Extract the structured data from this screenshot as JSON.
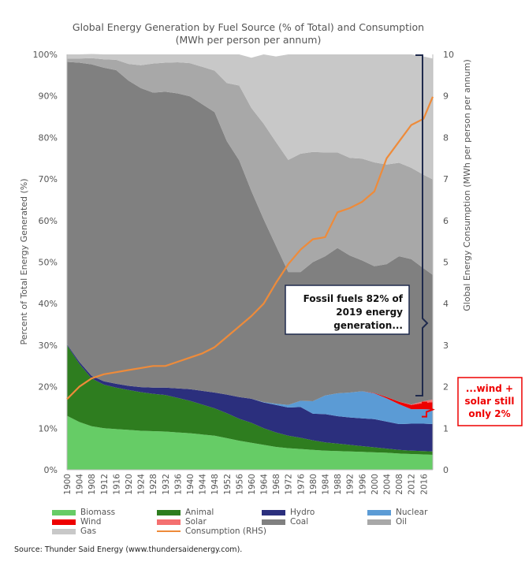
{
  "chart_data": {
    "type": "area",
    "title": "Global Energy Generation by Fuel Source (% of Total) and Consumption",
    "subtitle": "(MWh per person per annum)",
    "ylabel": "Percent of Total Energy Generated (%)",
    "y2label": "Global Energy Consumption (MWh per person per annum)",
    "ylim": [
      0,
      100
    ],
    "y2lim": [
      0,
      10
    ],
    "stacked": true,
    "grid": false,
    "legend_position": "bottom",
    "x": [
      1900,
      1904,
      1908,
      1912,
      1916,
      1920,
      1924,
      1928,
      1932,
      1936,
      1940,
      1944,
      1948,
      1952,
      1956,
      1960,
      1964,
      1968,
      1972,
      1976,
      1980,
      1984,
      1988,
      1992,
      1996,
      2000,
      2004,
      2008,
      2012,
      2016,
      2019
    ],
    "x_tick_labels": [
      "1900",
      "1904",
      "1908",
      "1912",
      "1916",
      "1920",
      "1924",
      "1928",
      "1932",
      "1936",
      "1940",
      "1944",
      "1948",
      "1952",
      "1956",
      "1960",
      "1964",
      "1968",
      "1972",
      "1976",
      "1980",
      "1984",
      "1988",
      "1992",
      "1996",
      "2000",
      "2004",
      "2008",
      "2012",
      "2016"
    ],
    "y_tick_labels": [
      "0%",
      "10%",
      "20%",
      "30%",
      "40%",
      "50%",
      "60%",
      "70%",
      "80%",
      "90%",
      "100%"
    ],
    "y2_tick_labels": [
      "0",
      "1",
      "2",
      "3",
      "4",
      "5",
      "6",
      "7",
      "8",
      "9",
      "10"
    ],
    "series": [
      {
        "name": "Biomass",
        "color": "#66cc66",
        "values": [
          13,
          11.5,
          10.5,
          10,
          9.8,
          9.6,
          9.4,
          9.3,
          9.2,
          9,
          8.8,
          8.5,
          8.2,
          7.6,
          7,
          6.5,
          6,
          5.5,
          5.2,
          5,
          4.8,
          4.6,
          4.5,
          4.4,
          4.3,
          4.2,
          4.1,
          3.9,
          3.8,
          3.7,
          3.6
        ]
      },
      {
        "name": "Animal",
        "color": "#2e7d1f",
        "values": [
          17,
          14,
          11.5,
          10.5,
          10,
          9.6,
          9.3,
          9,
          8.8,
          8.3,
          7.8,
          7.2,
          6.6,
          6,
          5.3,
          4.8,
          4,
          3.5,
          3,
          2.7,
          2.3,
          2,
          1.8,
          1.6,
          1.4,
          1.2,
          1,
          0.9,
          0.8,
          0.8,
          0.8
        ]
      },
      {
        "name": "Hydro",
        "color": "#2b2f7d",
        "values": [
          0.2,
          0.5,
          0.6,
          0.8,
          0.9,
          1,
          1.2,
          1.5,
          1.8,
          2.3,
          2.8,
          3.3,
          3.8,
          4.5,
          5.2,
          5.8,
          6.2,
          6.6,
          6.8,
          7.4,
          6.4,
          6.8,
          6.6,
          6.6,
          6.7,
          6.8,
          6.5,
          6.2,
          6.5,
          6.6,
          6.6
        ]
      },
      {
        "name": "Nuclear",
        "color": "#5b9bd5",
        "values": [
          0,
          0,
          0,
          0,
          0,
          0,
          0,
          0,
          0,
          0,
          0,
          0,
          0,
          0,
          0,
          0,
          0.1,
          0.3,
          0.6,
          1.5,
          3,
          4.5,
          5.5,
          6,
          6.5,
          6.2,
          5.6,
          4.8,
          3.5,
          3.5,
          3.5
        ]
      },
      {
        "name": "Wind",
        "color": "#ee0000",
        "values": [
          0,
          0,
          0,
          0,
          0,
          0,
          0,
          0,
          0,
          0,
          0,
          0,
          0,
          0,
          0,
          0,
          0,
          0,
          0,
          0,
          0,
          0,
          0,
          0,
          0,
          0.1,
          0.3,
          0.6,
          1,
          1.5,
          1.8
        ]
      },
      {
        "name": "Solar",
        "color": "#f47070",
        "values": [
          0,
          0,
          0,
          0,
          0,
          0,
          0,
          0,
          0,
          0,
          0,
          0,
          0,
          0,
          0,
          0,
          0,
          0,
          0,
          0,
          0,
          0,
          0,
          0,
          0,
          0,
          0,
          0,
          0.1,
          0.4,
          0.6
        ]
      },
      {
        "name": "Coal",
        "color": "#808080",
        "values": [
          68,
          72,
          75,
          75.5,
          75.5,
          73.5,
          72,
          71,
          71.2,
          71,
          70.5,
          69,
          67.5,
          61,
          57,
          50,
          44,
          38,
          32,
          31,
          33.5,
          33.5,
          35,
          33,
          31.5,
          30.5,
          32,
          35,
          35,
          32,
          30
        ]
      },
      {
        "name": "Oil",
        "color": "#a8a8a8",
        "values": [
          0.8,
          1,
          1.5,
          2,
          2.5,
          4,
          5.5,
          7,
          7,
          7.5,
          8,
          9,
          10,
          14,
          18,
          20,
          23,
          25,
          27,
          28.5,
          26.5,
          25,
          23,
          23.5,
          24.5,
          25,
          24,
          22.5,
          22,
          22.5,
          23
        ]
      },
      {
        "name": "Gas",
        "color": "#c8c8c8",
        "values": [
          1,
          1,
          1,
          1.2,
          1.3,
          2.3,
          2.6,
          2.2,
          2,
          1.9,
          2.1,
          3,
          3.9,
          6.9,
          7.5,
          12.1,
          16.7,
          20.6,
          25.4,
          23.9,
          23.5,
          23.6,
          23.6,
          24.9,
          25.1,
          26,
          26.5,
          26.1,
          27.3,
          28.5,
          29.1
        ]
      }
    ],
    "line_series": {
      "name": "Consumption (RHS)",
      "color": "#ee8b3a",
      "axis": "right",
      "x": [
        1900,
        1904,
        1908,
        1912,
        1916,
        1920,
        1924,
        1928,
        1932,
        1936,
        1940,
        1944,
        1948,
        1952,
        1956,
        1960,
        1964,
        1968,
        1972,
        1976,
        1980,
        1984,
        1988,
        1992,
        1996,
        2000,
        2004,
        2008,
        2012,
        2016,
        2019
      ],
      "values": [
        1.7,
        2.0,
        2.2,
        2.3,
        2.35,
        2.4,
        2.45,
        2.5,
        2.5,
        2.6,
        2.7,
        2.8,
        2.95,
        3.2,
        3.45,
        3.7,
        4.0,
        4.5,
        4.95,
        5.3,
        5.55,
        5.6,
        6.2,
        6.3,
        6.45,
        6.7,
        7.5,
        7.9,
        8.3,
        8.45,
        8.98
      ]
    },
    "annotations": [
      {
        "id": "fossil",
        "lines": [
          "Fossil fuels 82% of",
          "2019 energy",
          "generation..."
        ]
      },
      {
        "id": "wind_solar",
        "lines": [
          "...wind +",
          "solar still",
          "only 2%"
        ]
      }
    ]
  },
  "source": "Source: Thunder Said Energy (www.thundersaidenergy.com)."
}
